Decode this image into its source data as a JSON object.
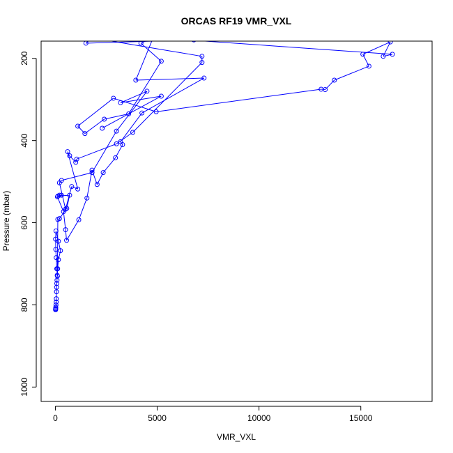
{
  "chart_data": {
    "type": "scatter",
    "title": "ORCAS RF19 VMR_VXL",
    "xlabel": "VMR_VXL",
    "ylabel": "Pressure (mbar)",
    "xlim": [
      -700,
      18500
    ],
    "ylim": [
      1035,
      158
    ],
    "y_reversed": true,
    "grid": false,
    "x_ticks": [
      0,
      5000,
      10000,
      15000
    ],
    "x_tick_labels": [
      "0",
      "5000",
      "10000",
      "15000"
    ],
    "y_ticks": [
      200,
      400,
      600,
      800,
      1000
    ],
    "y_tick_labels": [
      "200",
      "400",
      "600",
      "800",
      "1000"
    ],
    "colors": {
      "series": "#0000ff",
      "frame": "#000000"
    },
    "series": [
      {
        "connected": true,
        "marker": "open-circle",
        "points": [
          [
            10,
            812
          ],
          [
            12,
            811
          ],
          [
            15,
            809
          ],
          [
            20,
            806
          ],
          [
            30,
            800
          ],
          [
            40,
            793
          ],
          [
            45,
            785
          ],
          [
            55,
            768
          ],
          [
            60,
            757
          ],
          [
            70,
            748
          ],
          [
            80,
            740
          ],
          [
            90,
            728
          ],
          [
            110,
            712
          ],
          [
            150,
            690
          ],
          [
            250,
            668
          ],
          [
            150,
            645
          ],
          [
            30,
            620
          ],
          [
            10,
            640
          ],
          [
            20,
            665
          ],
          [
            40,
            685
          ],
          [
            70,
            712
          ],
          [
            100,
            730
          ],
          [
            120,
            592
          ],
          [
            200,
            590
          ],
          [
            560,
            565
          ],
          [
            700,
            533
          ],
          [
            130,
            535
          ],
          [
            200,
            533
          ],
          [
            300,
            533
          ],
          [
            100,
            537
          ],
          [
            400,
            573
          ],
          [
            500,
            617
          ],
          [
            550,
            643
          ],
          [
            1150,
            593
          ],
          [
            1550,
            540
          ],
          [
            1800,
            472
          ],
          [
            2050,
            507
          ],
          [
            2350,
            478
          ],
          [
            2950,
            442
          ],
          [
            3300,
            410
          ],
          [
            3200,
            403
          ],
          [
            4250,
            333
          ],
          [
            7300,
            248
          ],
          [
            3950,
            253
          ],
          [
            4800,
            150
          ],
          [
            4200,
            163
          ],
          [
            5200,
            207
          ],
          [
            3600,
            335
          ],
          [
            2400,
            348
          ],
          [
            1450,
            383
          ],
          [
            1100,
            365
          ],
          [
            2850,
            297
          ],
          [
            4950,
            330
          ],
          [
            13050,
            275
          ],
          [
            13250,
            276
          ],
          [
            13700,
            253
          ],
          [
            15400,
            219
          ],
          [
            15100,
            190
          ],
          [
            16450,
            160
          ],
          [
            16100,
            195
          ],
          [
            16550,
            190
          ],
          [
            5050,
            150
          ],
          [
            6800,
            155
          ],
          [
            1500,
            163
          ],
          [
            1800,
            150
          ],
          [
            7200,
            195
          ],
          [
            7200,
            210
          ],
          [
            3800,
            380
          ],
          [
            3000,
            408
          ],
          [
            1050,
            445
          ],
          [
            1000,
            453
          ],
          [
            700,
            437
          ],
          [
            600,
            427
          ],
          [
            1100,
            518
          ],
          [
            800,
            512
          ],
          [
            500,
            567
          ],
          [
            200,
            503
          ],
          [
            300,
            497
          ],
          [
            1800,
            478
          ],
          [
            3000,
            377
          ],
          [
            4500,
            280
          ],
          [
            3200,
            308
          ],
          [
            5200,
            292
          ],
          [
            2300,
            370
          ]
        ]
      }
    ]
  }
}
